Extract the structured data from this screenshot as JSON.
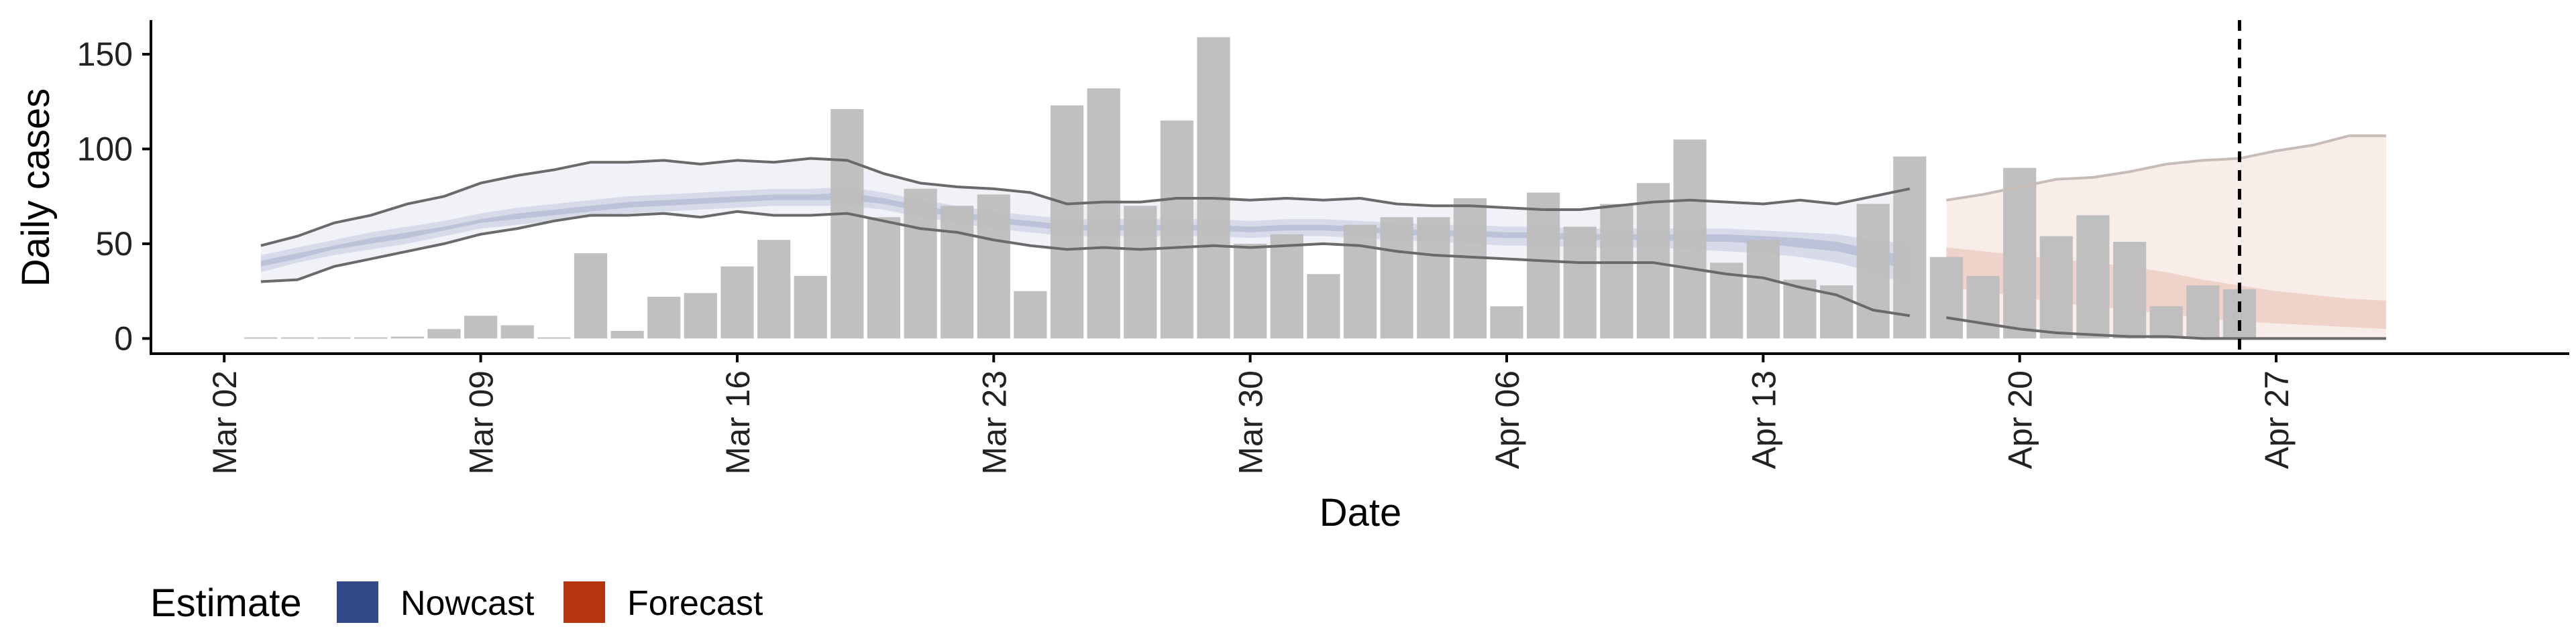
{
  "chart_data": {
    "type": "bar",
    "xlabel": "Date",
    "ylabel": "Daily cases",
    "ylim": [
      -8,
      168
    ],
    "y_ticks": [
      0,
      50,
      100,
      150
    ],
    "y_tick_labels": [
      "0",
      "50",
      "100",
      "150"
    ],
    "x_ticks": [
      "2020-03-02",
      "2020-03-09",
      "2020-03-16",
      "2020-03-23",
      "2020-03-30",
      "2020-04-06",
      "2020-04-13",
      "2020-04-20",
      "2020-04-27"
    ],
    "x_tick_labels": [
      "Mar 02",
      "Mar 09",
      "Mar 16",
      "Mar 23",
      "Mar 30",
      "Apr 06",
      "Apr 13",
      "Apr 20",
      "Apr 27"
    ],
    "x_range": [
      "2020-02-29",
      "2020-05-05"
    ],
    "grid": false,
    "vline_date": "2020-04-26",
    "legend": {
      "title": "Estimate",
      "placement": "bottom-left",
      "items": [
        {
          "label": "Nowcast",
          "color": "#32498a"
        },
        {
          "label": "Forecast",
          "color": "#b5350e"
        }
      ]
    },
    "bars": {
      "color": "#bdbdbd",
      "start_date": "2020-03-03",
      "values": [
        0,
        0,
        0,
        0,
        1,
        5,
        12,
        7,
        0,
        45,
        4,
        22,
        24,
        38,
        52,
        33,
        121,
        64,
        79,
        70,
        76,
        25,
        123,
        132,
        70,
        115,
        159,
        50,
        55,
        34,
        60,
        64,
        64,
        74,
        17,
        77,
        59,
        71,
        82,
        105,
        40,
        52,
        31,
        28,
        71,
        96,
        43,
        33,
        90,
        54,
        65,
        51,
        17,
        28,
        26
      ]
    },
    "nowcast": {
      "color": "#32498a",
      "start_date": "2020-03-03",
      "lower90": [
        30,
        31,
        38,
        42,
        46,
        50,
        55,
        58,
        62,
        65,
        65,
        66,
        64,
        67,
        65,
        65,
        66,
        62,
        58,
        56,
        52,
        49,
        47,
        48,
        47,
        48,
        49,
        48,
        49,
        50,
        49,
        46,
        44,
        43,
        42,
        41,
        40,
        40,
        40,
        37,
        34,
        32,
        27,
        23,
        15,
        12
      ],
      "upper90": [
        49,
        54,
        61,
        65,
        71,
        75,
        82,
        86,
        89,
        93,
        93,
        94,
        92,
        94,
        93,
        95,
        94,
        87,
        82,
        80,
        79,
        77,
        71,
        72,
        72,
        74,
        74,
        73,
        74,
        73,
        74,
        71,
        70,
        70,
        69,
        68,
        68,
        70,
        72,
        73,
        72,
        71,
        73,
        71,
        75,
        79
      ],
      "lower50": [
        35,
        40,
        44,
        47,
        50,
        54,
        58,
        60,
        62,
        64,
        66,
        67,
        68,
        69,
        70,
        70,
        70,
        68,
        64,
        61,
        58,
        56,
        54,
        54,
        54,
        54,
        54,
        53,
        54,
        54,
        53,
        52,
        51,
        50,
        49,
        49,
        48,
        48,
        48,
        47,
        46,
        45,
        43,
        40,
        35,
        28
      ],
      "upper50": [
        44,
        48,
        52,
        56,
        59,
        62,
        66,
        69,
        71,
        73,
        75,
        76,
        77,
        78,
        79,
        79,
        80,
        77,
        73,
        70,
        67,
        65,
        63,
        63,
        63,
        63,
        63,
        62,
        63,
        63,
        62,
        61,
        60,
        60,
        59,
        59,
        58,
        58,
        58,
        58,
        58,
        57,
        56,
        55,
        52,
        50
      ],
      "lower20": [
        38,
        42,
        47,
        50,
        53,
        57,
        61,
        63,
        65,
        67,
        69,
        70,
        71,
        72,
        73,
        73,
        73,
        71,
        67,
        64,
        61,
        59,
        57,
        57,
        57,
        57,
        57,
        56,
        57,
        57,
        56,
        55,
        54,
        54,
        53,
        53,
        52,
        52,
        52,
        51,
        51,
        50,
        48,
        46,
        42,
        35
      ],
      "upper20": [
        41,
        45,
        49,
        53,
        56,
        59,
        63,
        66,
        68,
        70,
        72,
        73,
        74,
        75,
        76,
        76,
        77,
        74,
        70,
        67,
        64,
        62,
        60,
        60,
        60,
        60,
        60,
        59,
        60,
        60,
        59,
        58,
        57,
        57,
        56,
        56,
        55,
        55,
        55,
        55,
        55,
        54,
        53,
        51,
        47,
        43
      ]
    },
    "forecast": {
      "color": "#b5350e",
      "start_date": "2020-04-18",
      "lower90": [
        11,
        8,
        5,
        3,
        2,
        1,
        1,
        0,
        0,
        0,
        0,
        0,
        0
      ],
      "upper90": [
        73,
        76,
        80,
        84,
        85,
        88,
        92,
        94,
        95,
        99,
        102,
        107,
        107
      ],
      "lower50": [
        27,
        25,
        22,
        19,
        17,
        15,
        13,
        11,
        9,
        8,
        7,
        6,
        5
      ],
      "upper50": [
        48,
        46,
        44,
        42,
        40,
        38,
        35,
        31,
        28,
        25,
        23,
        21,
        20
      ]
    }
  }
}
